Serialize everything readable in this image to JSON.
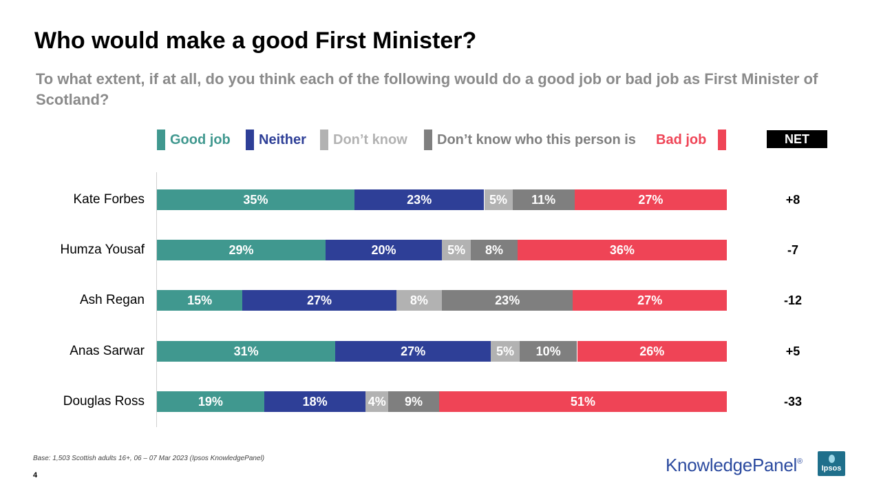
{
  "title": "Who would make a good First Minister?",
  "question": "To what extent, if at all, do you think each of the following would do a good job or bad job as First Minister of Scotland?",
  "net_header": "NET",
  "base_note": "Base: 1,503 Scottish adults 16+, 06 – 07 Mar 2023 (Ipsos KnowledgePanel)",
  "page_number": "4",
  "brand": {
    "name": "KnowledgePanel",
    "reg": "®",
    "logo_text": "Ipsos"
  },
  "colors": {
    "good": "#40988f",
    "neither": "#2e3f97",
    "dontknow": "#b2b2b2",
    "dontknowperson": "#7f7f7f",
    "bad": "#ef4456"
  },
  "chart_data": {
    "type": "bar",
    "orientation": "horizontal",
    "stacked": true,
    "normalized_to": 100,
    "title": "Who would make a good First Minister?",
    "categories": [
      "Kate Forbes",
      "Humza Yousaf",
      "Ash Regan",
      "Anas Sarwar",
      "Douglas Ross"
    ],
    "series": [
      {
        "key": "good",
        "name": "Good job",
        "values": [
          35,
          29,
          15,
          31,
          19
        ]
      },
      {
        "key": "neither",
        "name": "Neither",
        "values": [
          23,
          20,
          27,
          27,
          18
        ]
      },
      {
        "key": "dontknow",
        "name": "Don’t know",
        "values": [
          5,
          5,
          8,
          5,
          4
        ]
      },
      {
        "key": "dontknowperson",
        "name": "Don’t know who this person is",
        "values": [
          11,
          8,
          23,
          10,
          9
        ]
      },
      {
        "key": "bad",
        "name": "Bad job",
        "values": [
          27,
          36,
          27,
          26,
          51
        ]
      }
    ],
    "data_label_suffix": "%",
    "net": [
      "+8",
      "-7",
      "-12",
      "+5",
      "-33"
    ],
    "legend_position": "top"
  }
}
